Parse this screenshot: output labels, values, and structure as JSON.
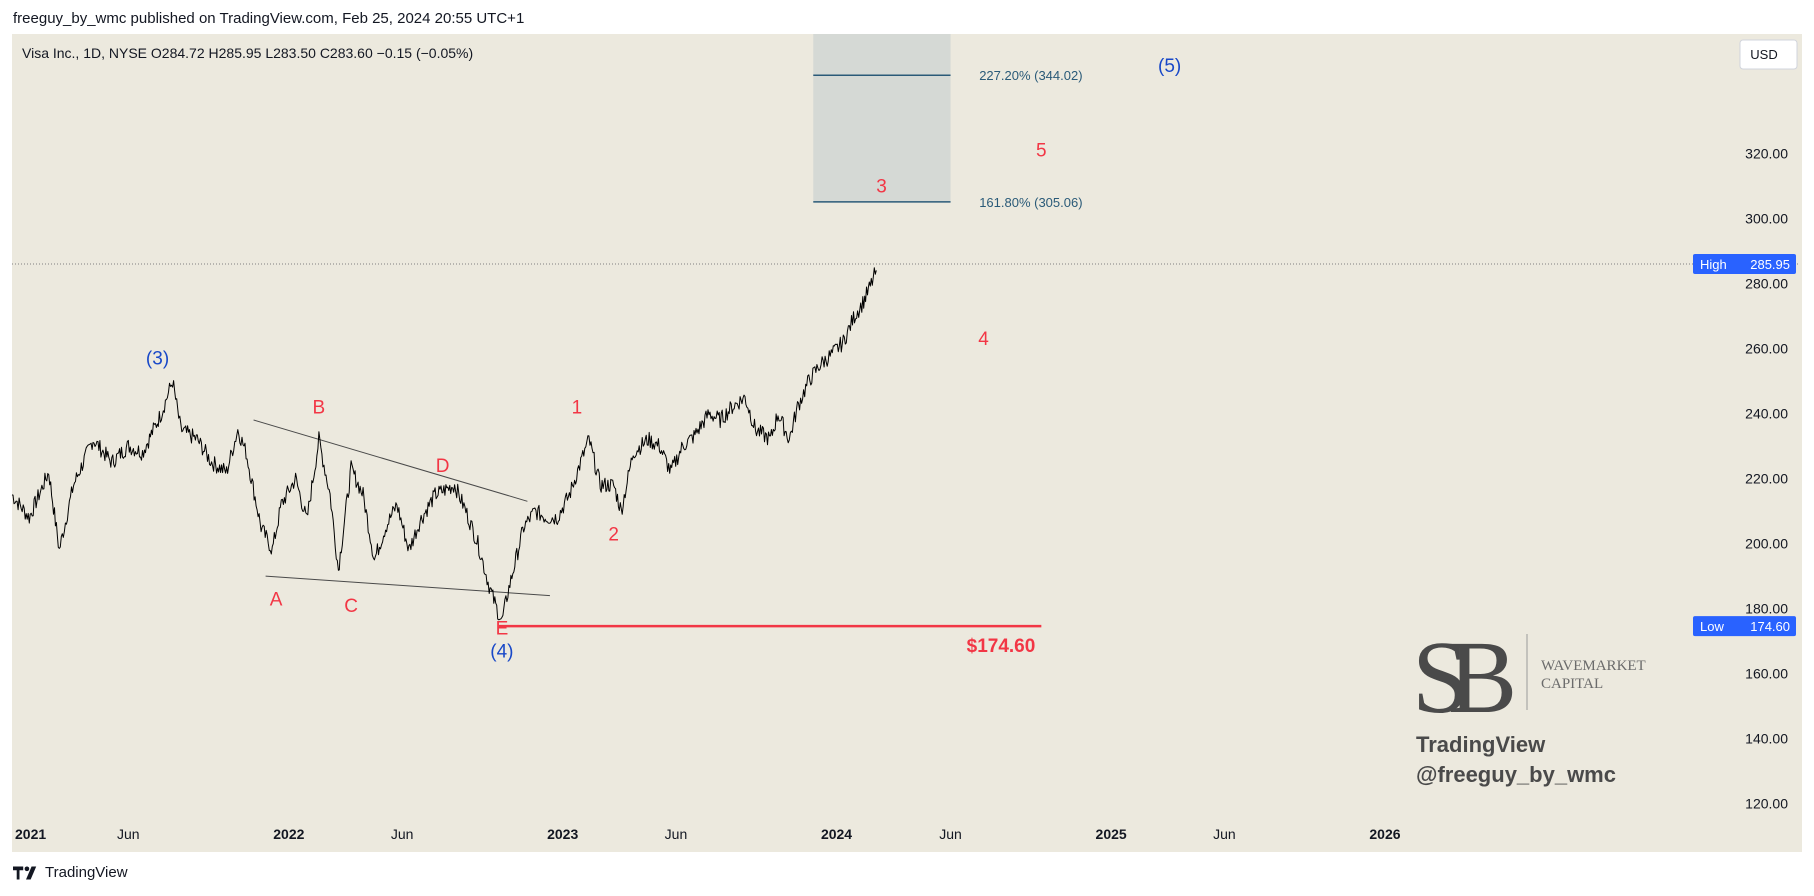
{
  "header": {
    "published": "freeguy_by_wmc published on TradingView.com, Feb 25, 2024 20:55 UTC+1"
  },
  "footer": {
    "brand": "TradingView",
    "icon": "tradingview-logo-icon"
  },
  "chart_data": {
    "type": "line",
    "instrument_line": "Visa Inc., 1D, NYSE  O284.72  H285.95  L283.50  C283.60  −0.15 (−0.05%)",
    "currency_button": "USD",
    "y_axis": {
      "ticks": [
        120,
        140,
        160,
        180,
        200,
        220,
        240,
        260,
        280,
        300,
        320,
        340
      ],
      "tick_labels": [
        "120.00",
        "140.00",
        "160.00",
        "180.00",
        "200.00",
        "220.00",
        "240.00",
        "260.00",
        "280.00",
        "300.00",
        "320.00",
        ""
      ],
      "range": [
        115,
        353
      ],
      "position": "right"
    },
    "x_axis": {
      "range": [
        "2020-12-28",
        "2026-06-30"
      ],
      "ticks": [
        {
          "date": "2021-01-01",
          "label": "2021",
          "bold": true
        },
        {
          "date": "2021-06-01",
          "label": "Jun",
          "bold": false
        },
        {
          "date": "2022-01-01",
          "label": "2022",
          "bold": true
        },
        {
          "date": "2022-06-01",
          "label": "Jun",
          "bold": false
        },
        {
          "date": "2023-01-01",
          "label": "2023",
          "bold": true
        },
        {
          "date": "2023-06-01",
          "label": "Jun",
          "bold": false
        },
        {
          "date": "2024-01-01",
          "label": "2024",
          "bold": true
        },
        {
          "date": "2024-06-01",
          "label": "Jun",
          "bold": false
        },
        {
          "date": "2025-01-01",
          "label": "2025",
          "bold": true
        },
        {
          "date": "2025-06-01",
          "label": "Jun",
          "bold": false
        },
        {
          "date": "2026-01-01",
          "label": "2026",
          "bold": true
        }
      ]
    },
    "grid": false,
    "series": [
      {
        "points": [
          [
            "2020-12-28",
            215
          ],
          [
            "2021-01-20",
            208
          ],
          [
            "2021-02-15",
            222
          ],
          [
            "2021-03-01",
            198
          ],
          [
            "2021-03-20",
            218
          ],
          [
            "2021-04-15",
            232
          ],
          [
            "2021-05-10",
            225
          ],
          [
            "2021-06-01",
            230
          ],
          [
            "2021-06-20",
            228
          ],
          [
            "2021-07-15",
            240
          ],
          [
            "2021-07-30",
            250
          ],
          [
            "2021-08-10",
            235
          ],
          [
            "2021-09-01",
            232
          ],
          [
            "2021-09-20",
            225
          ],
          [
            "2021-10-10",
            222
          ],
          [
            "2021-10-25",
            235
          ],
          [
            "2021-11-05",
            228
          ],
          [
            "2021-11-25",
            205
          ],
          [
            "2021-12-10",
            198
          ],
          [
            "2021-12-22",
            212
          ],
          [
            "2022-01-10",
            220
          ],
          [
            "2022-01-25",
            207
          ],
          [
            "2022-02-10",
            232
          ],
          [
            "2022-02-25",
            215
          ],
          [
            "2022-03-08",
            192
          ],
          [
            "2022-03-25",
            223
          ],
          [
            "2022-04-10",
            215
          ],
          [
            "2022-04-25",
            195
          ],
          [
            "2022-05-10",
            205
          ],
          [
            "2022-05-25",
            212
          ],
          [
            "2022-06-10",
            198
          ],
          [
            "2022-06-25",
            207
          ],
          [
            "2022-07-15",
            215
          ],
          [
            "2022-08-10",
            218
          ],
          [
            "2022-08-25",
            210
          ],
          [
            "2022-09-10",
            200
          ],
          [
            "2022-09-25",
            187
          ],
          [
            "2022-10-05",
            180
          ],
          [
            "2022-10-12",
            176
          ],
          [
            "2022-10-20",
            185
          ],
          [
            "2022-11-10",
            205
          ],
          [
            "2022-11-25",
            210
          ],
          [
            "2022-12-10",
            208
          ],
          [
            "2022-12-25",
            208
          ],
          [
            "2023-01-10",
            215
          ],
          [
            "2023-01-25",
            225
          ],
          [
            "2023-02-05",
            232
          ],
          [
            "2023-02-20",
            218
          ],
          [
            "2023-03-10",
            218
          ],
          [
            "2023-03-20",
            210
          ],
          [
            "2023-04-05",
            228
          ],
          [
            "2023-04-25",
            232
          ],
          [
            "2023-05-10",
            230
          ],
          [
            "2023-05-25",
            222
          ],
          [
            "2023-06-10",
            230
          ],
          [
            "2023-06-25",
            233
          ],
          [
            "2023-07-15",
            240
          ],
          [
            "2023-07-30",
            238
          ],
          [
            "2023-08-15",
            242
          ],
          [
            "2023-09-01",
            245
          ],
          [
            "2023-09-15",
            235
          ],
          [
            "2023-10-05",
            232
          ],
          [
            "2023-10-15",
            240
          ],
          [
            "2023-10-30",
            232
          ],
          [
            "2023-11-10",
            242
          ],
          [
            "2023-11-25",
            250
          ],
          [
            "2023-12-10",
            255
          ],
          [
            "2023-12-25",
            258
          ],
          [
            "2024-01-10",
            262
          ],
          [
            "2024-01-25",
            270
          ],
          [
            "2024-02-05",
            274
          ],
          [
            "2024-02-15",
            279
          ],
          [
            "2024-02-23",
            284
          ]
        ]
      }
    ],
    "horizontal_lines": [
      {
        "label": "High",
        "value": 285.95,
        "value_label": "285.95",
        "style": "dotted"
      }
    ],
    "axis_badges": [
      {
        "label": "High",
        "value_label": "285.95",
        "value": 285.95,
        "color": "#2962ff"
      },
      {
        "label": "Low",
        "value_label": "174.60",
        "value": 174.6,
        "color": "#2962ff"
      }
    ],
    "hidden_axis_label": "280.00",
    "trendlines": [
      {
        "from": [
          "2021-11-15",
          238
        ],
        "to": [
          "2022-11-15",
          213
        ]
      },
      {
        "from": [
          "2021-12-01",
          190
        ],
        "to": [
          "2022-12-15",
          184
        ]
      }
    ],
    "support_line": {
      "from": [
        "2022-10-08",
        174.6
      ],
      "to": [
        "2024-09-30",
        174.6
      ],
      "label": "$174.60",
      "color": "#f23645"
    },
    "fib_box": {
      "x_start": "2023-12-01",
      "x_end": "2024-06-01",
      "levels": [
        {
          "value": 344.02,
          "label": "227.20% (344.02)"
        },
        {
          "value": 305.06,
          "label": "161.80% (305.06)"
        }
      ],
      "color": "#2a5a78",
      "fill": "#d5d9d5"
    },
    "annotations": [
      {
        "text": "(3)",
        "x": "2021-07-10",
        "y": 255,
        "color": "#1848c8"
      },
      {
        "text": "(4)",
        "x": "2022-10-12",
        "y": 165,
        "color": "#1848c8"
      },
      {
        "text": "(5)",
        "x": "2025-03-20",
        "y": 345,
        "color": "#1848c8"
      },
      {
        "text": "A",
        "x": "2021-12-15",
        "y": 181,
        "color": "#f23645"
      },
      {
        "text": "B",
        "x": "2022-02-10",
        "y": 240,
        "color": "#f23645"
      },
      {
        "text": "C",
        "x": "2022-03-25",
        "y": 179,
        "color": "#f23645"
      },
      {
        "text": "D",
        "x": "2022-07-25",
        "y": 222,
        "color": "#f23645"
      },
      {
        "text": "E",
        "x": "2022-10-12",
        "y": 172,
        "color": "#f23645"
      },
      {
        "text": "1",
        "x": "2023-01-20",
        "y": 240,
        "color": "#f23645"
      },
      {
        "text": "2",
        "x": "2023-03-10",
        "y": 201,
        "color": "#f23645"
      },
      {
        "text": "3",
        "x": "2024-03-01",
        "y": 308,
        "color": "#f23645"
      },
      {
        "text": "4",
        "x": "2024-07-15",
        "y": 261,
        "color": "#f23645"
      },
      {
        "text": "5",
        "x": "2024-09-30",
        "y": 319,
        "color": "#f23645"
      }
    ]
  },
  "watermark": {
    "logo_text": "SB",
    "company_line1": "WAVEMARKET",
    "company_line2": "CAPITAL",
    "tv_text": "TradingView",
    "handle": "@freeguy_by_wmc"
  }
}
